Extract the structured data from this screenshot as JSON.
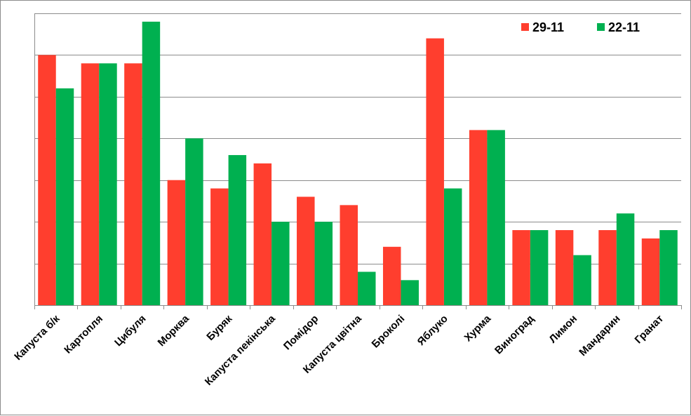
{
  "chart_data": {
    "type": "bar",
    "categories": [
      "Капуста б/к",
      "Картопля",
      "Цибуля",
      "Морква",
      "Буряк",
      "Капуста пекінська",
      "Помідор",
      "Капуста цвітна",
      "Броколі",
      "Яблуко",
      "Хурма",
      "Виноград",
      "Лимон",
      "Мандарин",
      "Гранат"
    ],
    "series": [
      {
        "name": "29-11",
        "color": "#ff3e2e",
        "values": [
          6.0,
          5.8,
          5.8,
          3.0,
          2.8,
          3.4,
          2.6,
          2.4,
          1.4,
          6.4,
          4.2,
          1.8,
          1.8,
          1.8,
          1.6
        ]
      },
      {
        "name": "22-11",
        "color": "#00b050",
        "values": [
          5.2,
          5.8,
          6.8,
          4.0,
          3.6,
          2.0,
          2.0,
          0.8,
          0.6,
          2.8,
          4.2,
          1.8,
          1.2,
          2.2,
          1.8
        ]
      }
    ],
    "ylim": [
      0,
      7
    ],
    "grid": true,
    "legend_position": "top-right",
    "title": "",
    "xlabel": "",
    "ylabel": ""
  }
}
